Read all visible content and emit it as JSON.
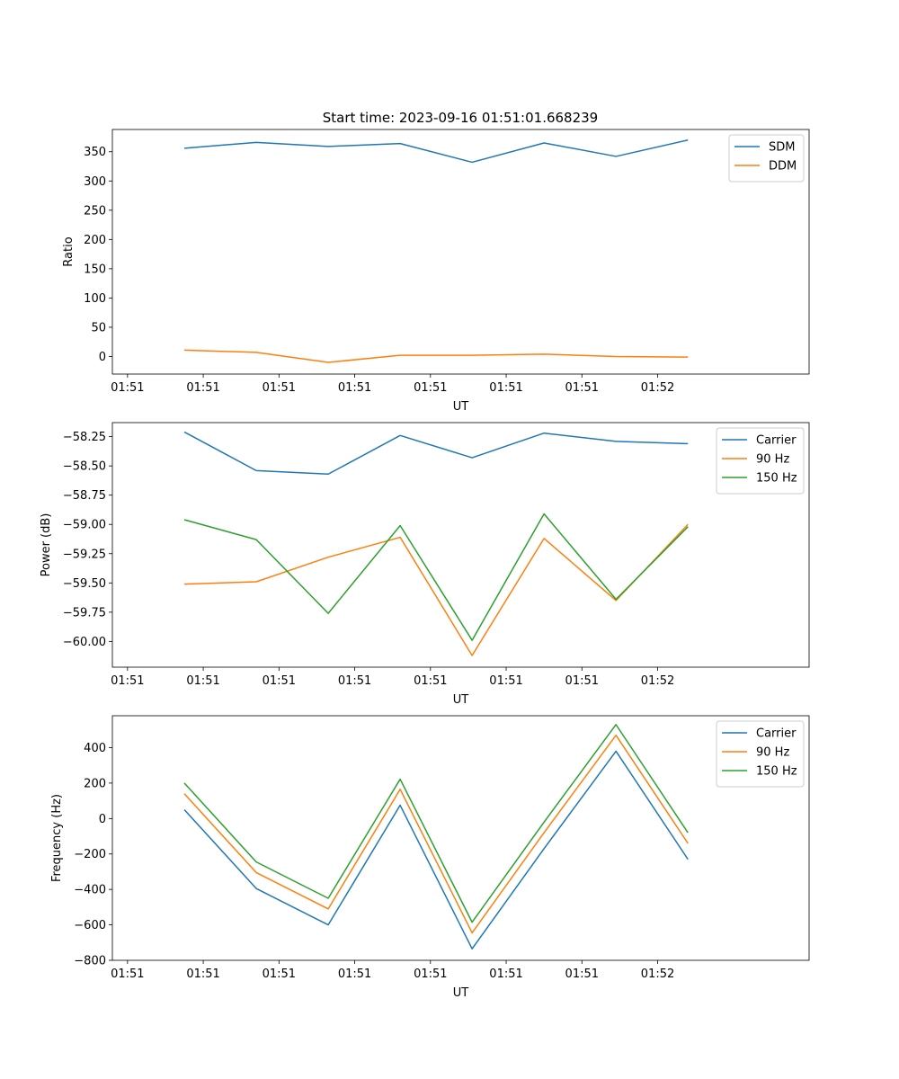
{
  "figure": {
    "title": "Start time: 2023-09-16 01:51:01.668239"
  },
  "chart_data": [
    {
      "type": "line",
      "title": "Start time: 2023-09-16 01:51:01.668239",
      "xlabel": "UT",
      "ylabel": "Ratio",
      "xtick_labels": [
        "01:51",
        "01:51",
        "01:51",
        "01:51",
        "01:51",
        "01:51",
        "01:51"
      ],
      "xtick_last_label": "01:52",
      "xlim": [
        -0.2,
        9
      ],
      "ylim": [
        -30,
        388
      ],
      "yticks": [
        0,
        50,
        100,
        150,
        200,
        250,
        300,
        350
      ],
      "ytick_labels": [
        "0",
        "50",
        "100",
        "150",
        "200",
        "250",
        "300",
        "350"
      ],
      "x": [
        0.75,
        1.7,
        2.65,
        3.6,
        4.55,
        5.5,
        6.45,
        7.4
      ],
      "series": [
        {
          "name": "SDM",
          "color": "#1f77b4",
          "values": [
            356,
            366,
            359,
            364,
            332,
            365,
            342,
            370
          ]
        },
        {
          "name": "DDM",
          "color": "#ff7f0e",
          "values": [
            11,
            7,
            -10,
            2,
            2,
            4,
            0,
            -1
          ]
        }
      ],
      "legend": "top-right"
    },
    {
      "type": "line",
      "title": "",
      "xlabel": "UT",
      "ylabel": "Power (dB)",
      "xtick_labels": [
        "01:51",
        "01:51",
        "01:51",
        "01:51",
        "01:51",
        "01:51",
        "01:51"
      ],
      "xtick_last_label": "01:52",
      "xlim": [
        -0.2,
        9
      ],
      "ylim": [
        -60.22,
        -58.13
      ],
      "yticks": [
        -60.0,
        -59.75,
        -59.5,
        -59.25,
        -59.0,
        -58.75,
        -58.5,
        -58.25
      ],
      "ytick_labels": [
        "−60.00",
        "−59.75",
        "−59.50",
        "−59.25",
        "−59.00",
        "−58.75",
        "−58.50",
        "−58.25"
      ],
      "x": [
        0.75,
        1.7,
        2.65,
        3.6,
        4.55,
        5.5,
        6.45,
        7.4
      ],
      "series": [
        {
          "name": "Carrier",
          "color": "#1f77b4",
          "values": [
            -58.21,
            -58.54,
            -58.57,
            -58.24,
            -58.43,
            -58.22,
            -58.29,
            -58.31
          ]
        },
        {
          "name": "90 Hz",
          "color": "#ff7f0e",
          "values": [
            -59.51,
            -59.49,
            -59.28,
            -59.11,
            -60.12,
            -59.12,
            -59.65,
            -59.0
          ]
        },
        {
          "name": "150 Hz",
          "color": "#2ca02c",
          "values": [
            -58.96,
            -59.13,
            -59.76,
            -59.01,
            -59.99,
            -58.91,
            -59.64,
            -59.02
          ]
        }
      ],
      "legend": "top-right"
    },
    {
      "type": "line",
      "title": "",
      "xlabel": "UT",
      "ylabel": "Frequency (Hz)",
      "xtick_labels": [
        "01:51",
        "01:51",
        "01:51",
        "01:51",
        "01:51",
        "01:51",
        "01:51"
      ],
      "xtick_last_label": "01:52",
      "xlim": [
        -0.2,
        9
      ],
      "ylim": [
        -800,
        580
      ],
      "yticks": [
        -800,
        -600,
        -400,
        -200,
        0,
        200,
        400
      ],
      "ytick_labels": [
        "−800",
        "−600",
        "−400",
        "−200",
        "0",
        "200",
        "400"
      ],
      "x": [
        0.75,
        1.7,
        2.65,
        3.6,
        4.55,
        5.5,
        6.45,
        7.4
      ],
      "series": [
        {
          "name": "Carrier",
          "color": "#1f77b4",
          "values": [
            50,
            -395,
            -600,
            75,
            -735,
            -170,
            380,
            -230
          ]
        },
        {
          "name": "90 Hz",
          "color": "#ff7f0e",
          "values": [
            140,
            -305,
            -510,
            165,
            -645,
            -80,
            470,
            -140
          ]
        },
        {
          "name": "150 Hz",
          "color": "#2ca02c",
          "values": [
            200,
            -245,
            -450,
            222,
            -585,
            -20,
            530,
            -80
          ]
        }
      ],
      "legend": "top-right"
    }
  ]
}
